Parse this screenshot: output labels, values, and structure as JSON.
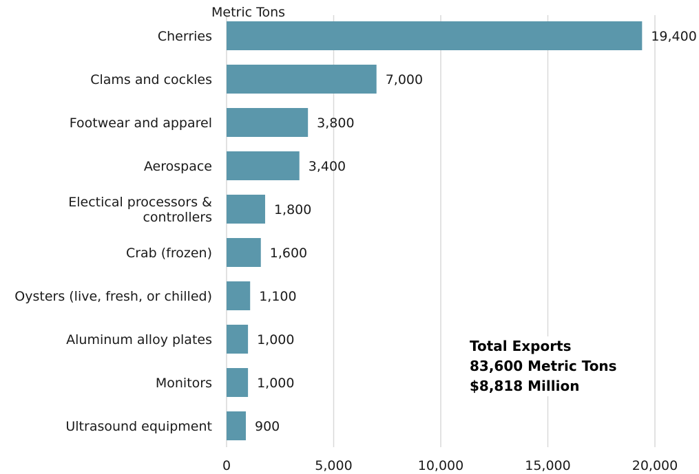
{
  "chart_data": {
    "type": "bar",
    "orientation": "horizontal",
    "unit_label": "Metric Tons",
    "categories": [
      "Cherries",
      "Clams and cockles",
      "Footwear and apparel",
      "Aerospace",
      "Electical processors & controllers",
      "Crab (frozen)",
      "Oysters (live, fresh, or chilled)",
      "Aluminum alloy plates",
      "Monitors",
      "Ultrasound equipment"
    ],
    "category_lines": [
      [
        "Cherries"
      ],
      [
        "Clams and cockles"
      ],
      [
        "Footwear and apparel"
      ],
      [
        "Aerospace"
      ],
      [
        "Electical processors &",
        "controllers"
      ],
      [
        "Crab (frozen)"
      ],
      [
        "Oysters (live, fresh, or chilled)"
      ],
      [
        "Aluminum alloy plates"
      ],
      [
        "Monitors"
      ],
      [
        "Ultrasound equipment"
      ]
    ],
    "values": [
      19400,
      7000,
      3800,
      3400,
      1800,
      1600,
      1100,
      1000,
      1000,
      900
    ],
    "value_labels": [
      "19,400",
      "7,000",
      "3,800",
      "3,400",
      "1,800",
      "1,600",
      "1,100",
      "1,000",
      "1,000",
      "900"
    ],
    "xlim": [
      0,
      20000
    ],
    "x_ticks": [
      0,
      5000,
      10000,
      15000,
      20000
    ],
    "x_tick_labels": [
      "0",
      "5,000",
      "10,000",
      "15,000",
      "20,000"
    ],
    "grid": "vertical",
    "bar_color": "#5b97ab",
    "grid_color": "#d9d9d9",
    "annotation": {
      "lines": [
        "Total Exports",
        "83,600 Metric Tons",
        "$8,818 Million"
      ]
    }
  }
}
